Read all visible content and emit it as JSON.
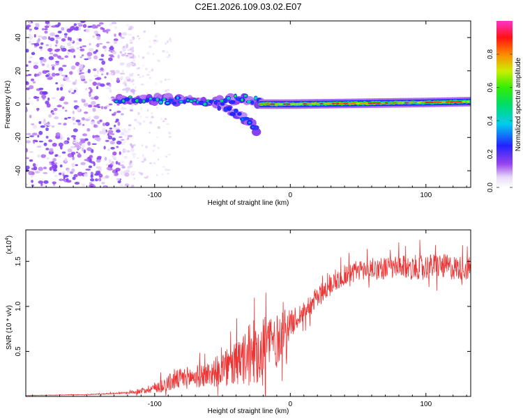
{
  "title": "C2E1.2026.109.03.02.E07",
  "chart_data": [
    {
      "type": "heatmap",
      "title": "C2E1.2026.109.03.02.E07",
      "xlabel": "Height of straight line (km)",
      "ylabel": "Frequency (Hz)",
      "xlim": [
        -195,
        133
      ],
      "ylim": [
        -50,
        50
      ],
      "xticks": [
        -100,
        0,
        100
      ],
      "yticks": [
        -40,
        -20,
        0,
        20,
        40
      ],
      "colorbar": {
        "label": "Normalized spectral amplitude",
        "range": [
          0,
          1
        ],
        "ticks": [
          0.0,
          0.2,
          0.4,
          0.6,
          0.8
        ]
      },
      "features": [
        {
          "name": "noise-region",
          "x_range": [
            -195,
            -115
          ],
          "y_range": [
            -50,
            50
          ],
          "amplitude": 0.15
        },
        {
          "name": "upper-branch",
          "points": [
            [
              -128,
              3
            ],
            [
              -100,
              3
            ],
            [
              -80,
              2
            ],
            [
              -60,
              0
            ],
            [
              -45,
              3
            ],
            [
              -30,
              3
            ],
            [
              -22,
              1
            ]
          ],
          "amplitude": 0.4
        },
        {
          "name": "lower-branch",
          "points": [
            [
              -55,
              0
            ],
            [
              -40,
              -5
            ],
            [
              -30,
              -10
            ],
            [
              -25,
              -15
            ]
          ],
          "amplitude": 0.2
        },
        {
          "name": "main-line",
          "points": [
            [
              -22,
              0
            ],
            [
              0,
              0
            ],
            [
              50,
              0.5
            ],
            [
              100,
              1
            ],
            [
              133,
              1.5
            ]
          ],
          "amplitude": 0.85
        }
      ]
    },
    {
      "type": "line",
      "xlabel": "Height of straight line (km)",
      "ylabel": "SNR (10 * v/v)",
      "multiplier_label": "(x10",
      "multiplier_exp": "4",
      "multiplier_close": ")",
      "xlim": [
        -195,
        133
      ],
      "ylim": [
        0,
        1.85
      ],
      "xticks": [
        -100,
        0,
        100
      ],
      "yticks": [
        0.5,
        1.0,
        1.5
      ],
      "ytick_labels": [
        "0.5",
        "1.0",
        "1.5"
      ],
      "color": "#ee3333",
      "series": [
        {
          "name": "SNR",
          "x": [
            -195,
            -150,
            -120,
            -110,
            -100,
            -90,
            -80,
            -70,
            -60,
            -50,
            -40,
            -30,
            -25,
            -20,
            -15,
            -10,
            -5,
            0,
            10,
            20,
            30,
            40,
            50,
            60,
            80,
            100,
            110,
            120,
            133
          ],
          "values": [
            0.01,
            0.02,
            0.04,
            0.06,
            0.1,
            0.15,
            0.2,
            0.22,
            0.25,
            0.3,
            0.35,
            0.45,
            0.55,
            0.5,
            0.65,
            0.6,
            0.75,
            0.8,
            0.95,
            1.1,
            1.25,
            1.35,
            1.4,
            1.42,
            1.43,
            1.44,
            1.45,
            1.43,
            1.42
          ],
          "noise_amplitude": [
            0.002,
            0.004,
            0.01,
            0.03,
            0.06,
            0.1,
            0.12,
            0.13,
            0.14,
            0.2,
            0.25,
            0.35,
            0.4,
            0.45,
            0.35,
            0.3,
            0.25,
            0.15,
            0.12,
            0.12,
            0.12,
            0.12,
            0.12,
            0.12,
            0.13,
            0.14,
            0.14,
            0.14,
            0.13
          ]
        }
      ]
    }
  ]
}
